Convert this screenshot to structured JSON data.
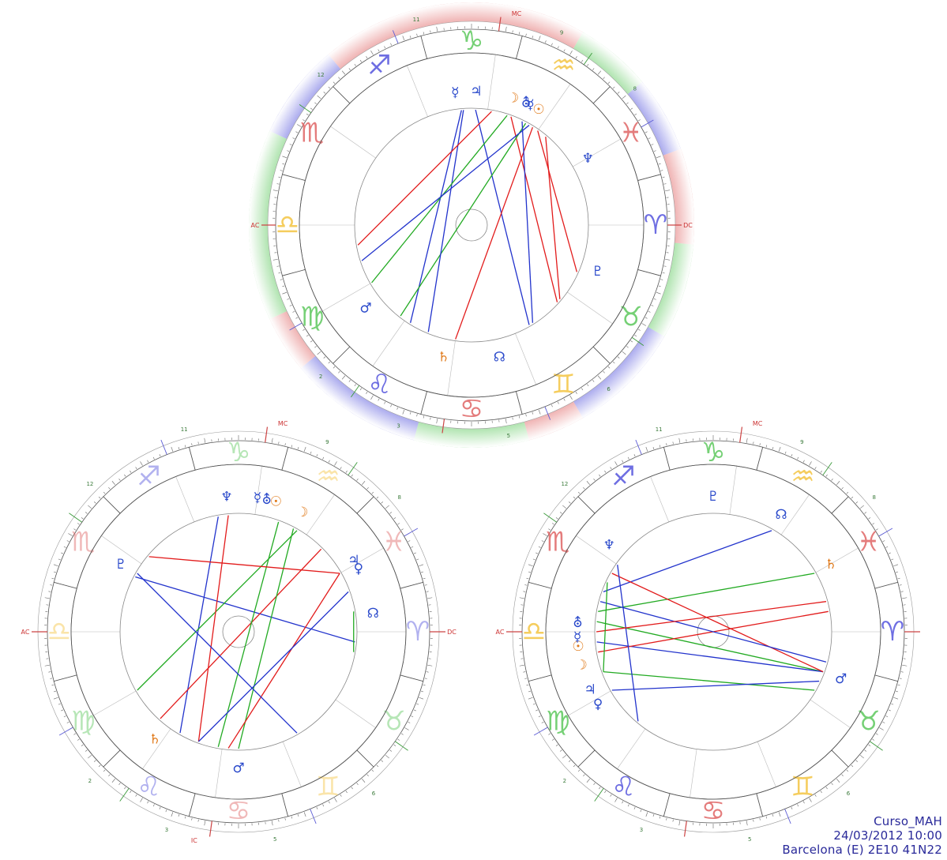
{
  "footer": {
    "name": "Curso_MAH",
    "datetime": "24/03/2012 10:00",
    "place": "Barcelona (E) 2E10 41N22"
  },
  "colors": {
    "fire": "#e06666",
    "earth": "#f4c542",
    "air": "#5ec85e",
    "water": "#5555dd",
    "red_line": "#e21b1b",
    "blue_line": "#2233cc",
    "green_line": "#22aa22",
    "planet_orange": "#e07a1a",
    "planet_blue": "#2b4acb"
  },
  "wheels": [
    {
      "id": "top",
      "angle_labels": [
        "MC",
        "DC",
        "AC"
      ],
      "house_numbers": [
        "11",
        "12",
        "2",
        "3",
        "5",
        "6",
        "8",
        "9"
      ],
      "planets": [
        {
          "glyph": "☿",
          "color": "blue"
        },
        {
          "glyph": "♃",
          "color": "blue"
        },
        {
          "glyph": "☽",
          "color": "orange"
        },
        {
          "glyph": "☉",
          "color": "orange"
        },
        {
          "glyph": "⛢",
          "color": "blue"
        },
        {
          "glyph": "☿",
          "color": "blue"
        },
        {
          "glyph": "♆",
          "color": "blue"
        },
        {
          "glyph": "♇",
          "color": "blue"
        },
        {
          "glyph": "☊",
          "color": "blue"
        },
        {
          "glyph": "♄",
          "color": "orange"
        },
        {
          "glyph": "♂",
          "color": "blue"
        }
      ]
    },
    {
      "id": "bottom-left",
      "angle_labels": [
        "MC",
        "IC",
        "DC",
        "AC"
      ],
      "house_numbers": [
        "11",
        "12",
        "2",
        "3",
        "5",
        "6",
        "8",
        "9"
      ],
      "planets": [
        {
          "glyph": "♆",
          "color": "blue"
        },
        {
          "glyph": "☿",
          "color": "blue"
        },
        {
          "glyph": "⛢",
          "color": "blue"
        },
        {
          "glyph": "☉",
          "color": "orange"
        },
        {
          "glyph": "☽",
          "color": "orange"
        },
        {
          "glyph": "♇",
          "color": "blue"
        },
        {
          "glyph": "♃",
          "color": "blue"
        },
        {
          "glyph": "♀",
          "color": "blue"
        },
        {
          "glyph": "☊",
          "color": "blue"
        },
        {
          "glyph": "♄",
          "color": "orange"
        },
        {
          "glyph": "♂",
          "color": "blue"
        }
      ]
    },
    {
      "id": "bottom-right",
      "angle_labels": [
        "MC",
        "AC"
      ],
      "house_numbers": [
        "11",
        "12",
        "2",
        "3",
        "5",
        "6",
        "8",
        "9"
      ],
      "planets": [
        {
          "glyph": "♇",
          "color": "blue"
        },
        {
          "glyph": "☊",
          "color": "blue"
        },
        {
          "glyph": "♆",
          "color": "blue"
        },
        {
          "glyph": "♄",
          "color": "orange"
        },
        {
          "glyph": "☉",
          "color": "orange"
        },
        {
          "glyph": "☿",
          "color": "blue"
        },
        {
          "glyph": "⛢",
          "color": "blue"
        },
        {
          "glyph": "☽",
          "color": "orange"
        },
        {
          "glyph": "♃",
          "color": "blue"
        },
        {
          "glyph": "♀",
          "color": "blue"
        },
        {
          "glyph": "♂",
          "color": "blue"
        }
      ]
    }
  ],
  "zodiac_symbols": [
    "♓",
    "♒",
    "♑",
    "♐",
    "♏",
    "♎",
    "♍",
    "♌",
    "♋",
    "♊",
    "♉",
    "♈"
  ]
}
